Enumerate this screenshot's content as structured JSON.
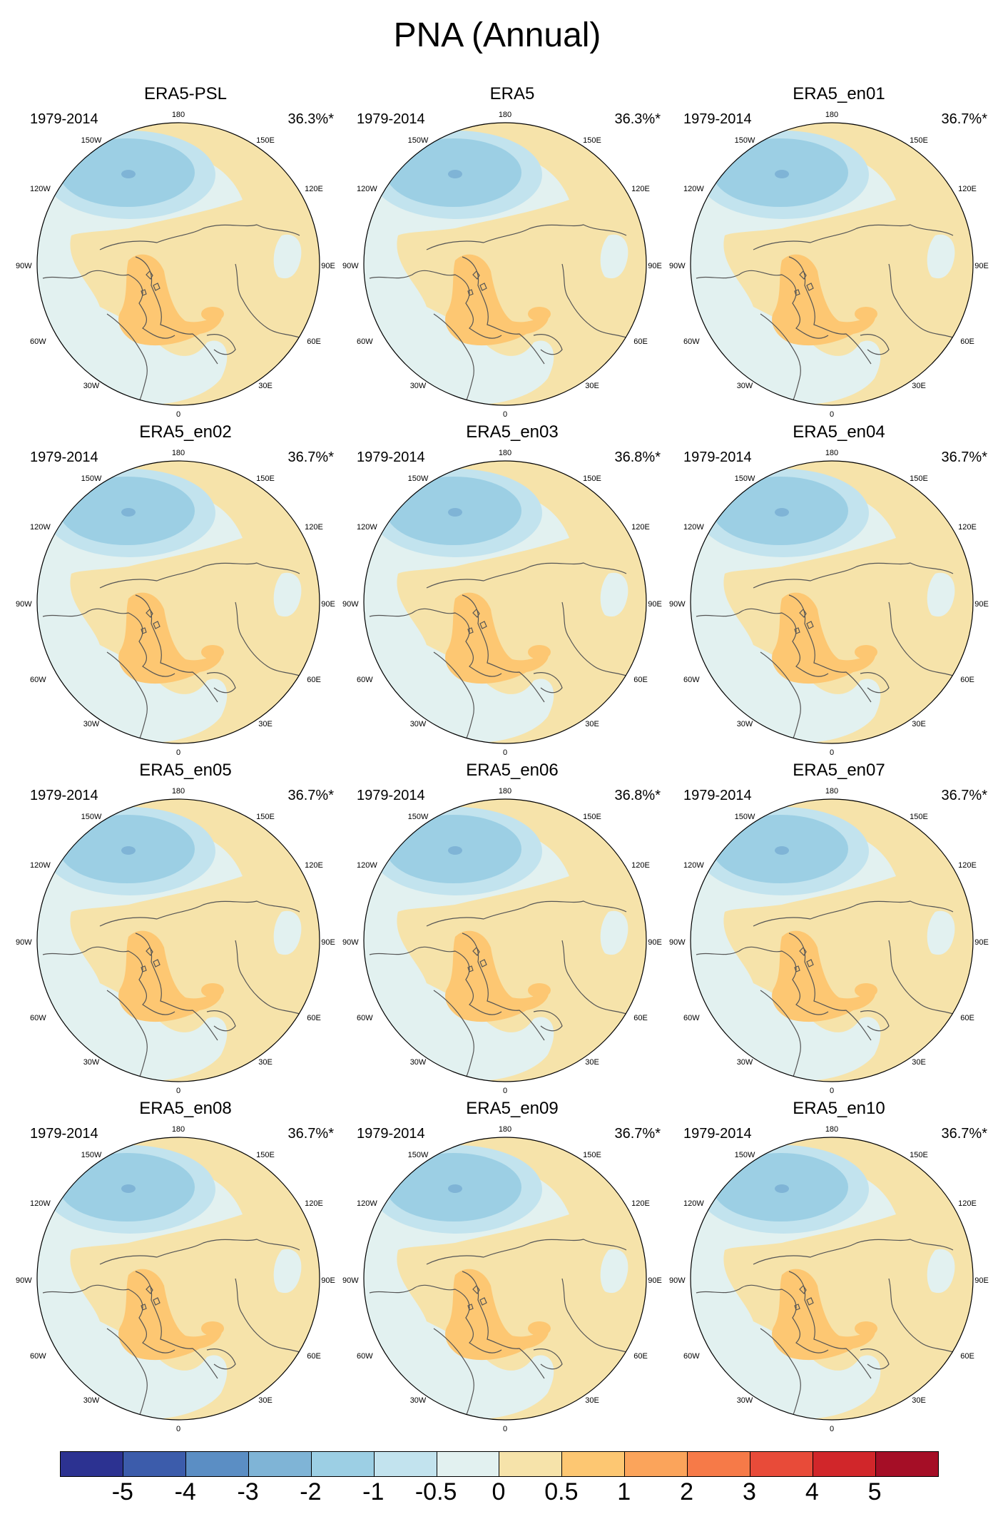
{
  "title": "PNA (Annual)",
  "period": "1979-2014",
  "lon_labels": {
    "top": "180",
    "bottom": "0",
    "upper_left": "150W",
    "upper_right": "150E",
    "mid_upper_left": "120W",
    "mid_upper_right": "120E",
    "left": "90W",
    "right": "90E",
    "mid_lower_left": "60W",
    "mid_lower_right": "60E",
    "lower_left": "30W",
    "lower_right": "30E"
  },
  "panels": [
    {
      "name": "ERA5-PSL",
      "pct": "36.3%*"
    },
    {
      "name": "ERA5",
      "pct": "36.3%*"
    },
    {
      "name": "ERA5_en01",
      "pct": "36.7%*"
    },
    {
      "name": "ERA5_en02",
      "pct": "36.7%*"
    },
    {
      "name": "ERA5_en03",
      "pct": "36.8%*"
    },
    {
      "name": "ERA5_en04",
      "pct": "36.7%*"
    },
    {
      "name": "ERA5_en05",
      "pct": "36.7%*"
    },
    {
      "name": "ERA5_en06",
      "pct": "36.8%*"
    },
    {
      "name": "ERA5_en07",
      "pct": "36.7%*"
    },
    {
      "name": "ERA5_en08",
      "pct": "36.7%*"
    },
    {
      "name": "ERA5_en09",
      "pct": "36.7%*"
    },
    {
      "name": "ERA5_en10",
      "pct": "36.7%*"
    }
  ],
  "colorbar": {
    "colors": [
      "#2c3291",
      "#3c5cab",
      "#5b8ec4",
      "#7fb4d6",
      "#9ccfe4",
      "#c2e3ee",
      "#e2f1f0",
      "#f6e3aa",
      "#fdc772",
      "#fba45b",
      "#f67a48",
      "#e84b39",
      "#d1262a",
      "#a50e26"
    ],
    "labels": [
      "-5",
      "-4",
      "-3",
      "-2",
      "-1",
      "-0.5",
      "0",
      "0.5",
      "1",
      "2",
      "3",
      "4",
      "5"
    ]
  },
  "map_colors": {
    "weak_positive": "#f6e3aa",
    "positive": "#fdc772",
    "weak_negative": "#e2f1f0",
    "negative": "#c2e3ee",
    "strong_negative": "#9ccfe4",
    "core_negative": "#7fb4d6",
    "coast": "#555555"
  }
}
